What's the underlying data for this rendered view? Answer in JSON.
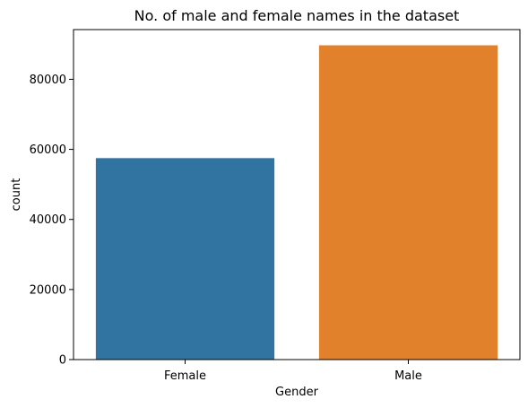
{
  "chart_data": {
    "type": "bar",
    "title": "No. of male and female names in the dataset",
    "xlabel": "Gender",
    "ylabel": "count",
    "categories": [
      "Female",
      "Male"
    ],
    "values": [
      57500,
      89700
    ],
    "colors": [
      "#3274a1",
      "#e1812c"
    ],
    "ylim": [
      0,
      94185
    ],
    "yticks": [
      0,
      20000,
      40000,
      60000,
      80000
    ],
    "grid": false,
    "legend": "none"
  }
}
